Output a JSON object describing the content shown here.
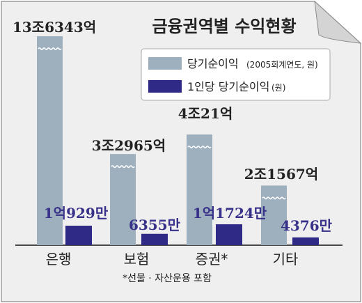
{
  "chart_data": {
    "type": "bar",
    "title": "금융권역별 수익현황",
    "categories": [
      "은행",
      "보험",
      "증권*",
      "기타"
    ],
    "series": [
      {
        "name": "당기순이익",
        "name_note": "(2005회계연도, 원)",
        "values_text": [
          "13조6343억",
          "3조2965억",
          "4조21억",
          "2조1567억"
        ],
        "values": [
          136343,
          32965,
          40021,
          21567
        ],
        "unit": "억원",
        "color": "#9eafbe"
      },
      {
        "name": "1인당 당기순이익",
        "name_note": "(원)",
        "values_text": [
          "1억929만",
          "6355만",
          "1억1724만",
          "4376만"
        ],
        "values": [
          10929,
          6355,
          11724,
          4376
        ],
        "unit": "만원",
        "color": "#2f2a86"
      }
    ],
    "axis_break": true,
    "grid": false,
    "legend_position": "top-right",
    "footnote": "*선물 · 자산운용 포함"
  }
}
